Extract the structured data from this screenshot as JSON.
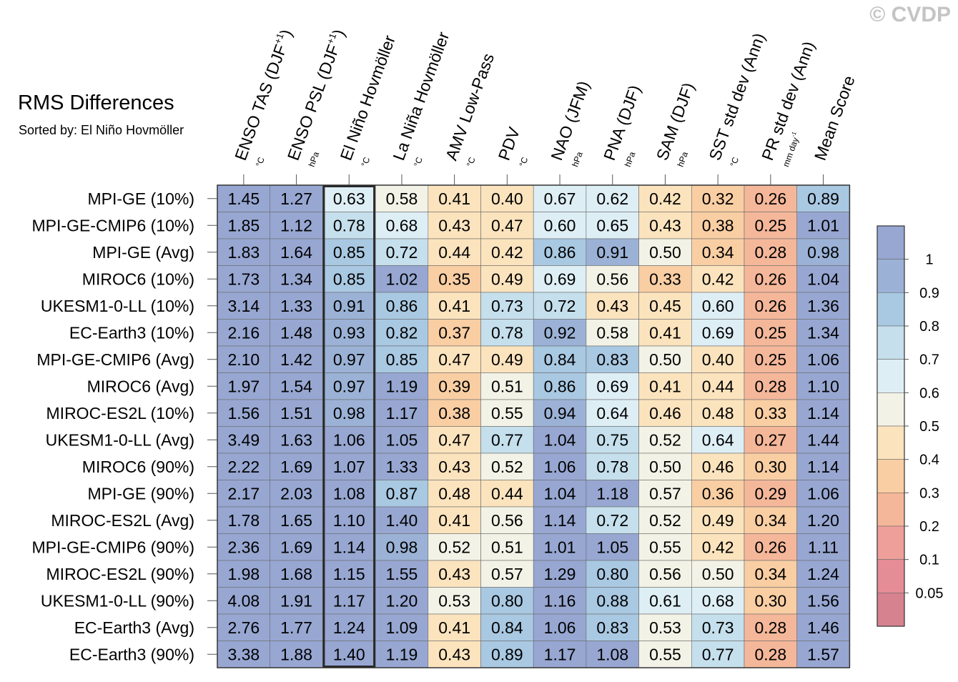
{
  "watermark": "© CVDP",
  "chart_data": {
    "type": "heatmap",
    "title": "RMS Differences",
    "subtitle": "Sorted by: El Niño Hovmöller",
    "highlight_column": 2,
    "columns": [
      {
        "label": "ENSO TAS (DJF",
        "sup": "+1",
        "tail": ")",
        "unit": "°C"
      },
      {
        "label": "ENSO PSL (DJF",
        "sup": "+1",
        "tail": ")",
        "unit": "hPa"
      },
      {
        "label": "El Niño Hovmöller",
        "sup": "",
        "tail": "",
        "unit": "°C"
      },
      {
        "label": "La Niña Hovmöller",
        "sup": "",
        "tail": "",
        "unit": "°C"
      },
      {
        "label": "AMV Low-Pass",
        "sup": "",
        "tail": "",
        "unit": "°C"
      },
      {
        "label": "PDV",
        "sup": "",
        "tail": "",
        "unit": "°C"
      },
      {
        "label": "NAO (JFM)",
        "sup": "",
        "tail": "",
        "unit": "hPa"
      },
      {
        "label": "PNA (DJF)",
        "sup": "",
        "tail": "",
        "unit": "hPa"
      },
      {
        "label": "SAM (DJF)",
        "sup": "",
        "tail": "",
        "unit": "hPa"
      },
      {
        "label": "SST std dev (Ann)",
        "sup": "",
        "tail": "",
        "unit": "°C"
      },
      {
        "label": "PR std dev (Ann)",
        "sup": "",
        "tail": "",
        "unit": "mm day",
        "unit_sup": "-1"
      },
      {
        "label": "Mean Score",
        "sup": "",
        "tail": "",
        "unit": ""
      }
    ],
    "rows": [
      "MPI-GE (10%)",
      "MPI-GE-CMIP6 (10%)",
      "MPI-GE (Avg)",
      "MIROC6 (10%)",
      "UKESM1-0-LL (10%)",
      "EC-Earth3 (10%)",
      "MPI-GE-CMIP6 (Avg)",
      "MIROC6 (Avg)",
      "MIROC-ES2L (10%)",
      "UKESM1-0-LL (Avg)",
      "MIROC6 (90%)",
      "MPI-GE (90%)",
      "MIROC-ES2L (Avg)",
      "MPI-GE-CMIP6 (90%)",
      "MIROC-ES2L (90%)",
      "UKESM1-0-LL (90%)",
      "EC-Earth3 (Avg)",
      "EC-Earth3 (90%)"
    ],
    "values": [
      [
        "1.45",
        "1.27",
        "0.63",
        "0.58",
        "0.41",
        "0.40",
        "0.67",
        "0.62",
        "0.42",
        "0.32",
        "0.26",
        "0.89"
      ],
      [
        "1.85",
        "1.12",
        "0.78",
        "0.68",
        "0.43",
        "0.47",
        "0.60",
        "0.65",
        "0.43",
        "0.38",
        "0.25",
        "1.01"
      ],
      [
        "1.83",
        "1.64",
        "0.85",
        "0.72",
        "0.44",
        "0.42",
        "0.86",
        "0.91",
        "0.50",
        "0.34",
        "0.28",
        "0.98"
      ],
      [
        "1.73",
        "1.34",
        "0.85",
        "1.02",
        "0.35",
        "0.49",
        "0.69",
        "0.56",
        "0.33",
        "0.42",
        "0.26",
        "1.04"
      ],
      [
        "3.14",
        "1.33",
        "0.91",
        "0.86",
        "0.41",
        "0.73",
        "0.72",
        "0.43",
        "0.45",
        "0.60",
        "0.26",
        "1.36"
      ],
      [
        "2.16",
        "1.48",
        "0.93",
        "0.82",
        "0.37",
        "0.78",
        "0.92",
        "0.58",
        "0.41",
        "0.69",
        "0.25",
        "1.34"
      ],
      [
        "2.10",
        "1.42",
        "0.97",
        "0.85",
        "0.47",
        "0.49",
        "0.84",
        "0.83",
        "0.50",
        "0.40",
        "0.25",
        "1.06"
      ],
      [
        "1.97",
        "1.54",
        "0.97",
        "1.19",
        "0.39",
        "0.51",
        "0.86",
        "0.69",
        "0.41",
        "0.44",
        "0.28",
        "1.10"
      ],
      [
        "1.56",
        "1.51",
        "0.98",
        "1.17",
        "0.38",
        "0.55",
        "0.94",
        "0.64",
        "0.46",
        "0.48",
        "0.33",
        "1.14"
      ],
      [
        "3.49",
        "1.63",
        "1.06",
        "1.05",
        "0.47",
        "0.77",
        "1.04",
        "0.75",
        "0.52",
        "0.64",
        "0.27",
        "1.44"
      ],
      [
        "2.22",
        "1.69",
        "1.07",
        "1.33",
        "0.43",
        "0.52",
        "1.06",
        "0.78",
        "0.50",
        "0.46",
        "0.30",
        "1.14"
      ],
      [
        "2.17",
        "2.03",
        "1.08",
        "0.87",
        "0.48",
        "0.44",
        "1.04",
        "1.18",
        "0.57",
        "0.36",
        "0.29",
        "1.06"
      ],
      [
        "1.78",
        "1.65",
        "1.10",
        "1.40",
        "0.41",
        "0.56",
        "1.14",
        "0.72",
        "0.52",
        "0.49",
        "0.34",
        "1.20"
      ],
      [
        "2.36",
        "1.69",
        "1.14",
        "0.98",
        "0.52",
        "0.51",
        "1.01",
        "1.05",
        "0.55",
        "0.42",
        "0.26",
        "1.11"
      ],
      [
        "1.98",
        "1.68",
        "1.15",
        "1.55",
        "0.43",
        "0.57",
        "1.29",
        "0.80",
        "0.56",
        "0.50",
        "0.34",
        "1.24"
      ],
      [
        "4.08",
        "1.91",
        "1.17",
        "1.20",
        "0.53",
        "0.80",
        "1.16",
        "0.88",
        "0.61",
        "0.68",
        "0.30",
        "1.56"
      ],
      [
        "2.76",
        "1.77",
        "1.24",
        "1.09",
        "0.41",
        "0.84",
        "1.06",
        "0.83",
        "0.53",
        "0.73",
        "0.28",
        "1.46"
      ],
      [
        "3.38",
        "1.88",
        "1.40",
        "1.19",
        "0.43",
        "0.89",
        "1.17",
        "1.08",
        "0.55",
        "0.77",
        "0.28",
        "1.57"
      ]
    ],
    "colorbar": {
      "levels": [
        0.05,
        0.1,
        0.2,
        0.3,
        0.4,
        0.5,
        0.6,
        0.7,
        0.8,
        0.9,
        1
      ],
      "labels": [
        "0.05",
        "0.1",
        "0.2",
        "0.3",
        "0.4",
        "0.5",
        "0.6",
        "0.7",
        "0.8",
        "0.9",
        "1"
      ],
      "colors": [
        "#d6828f",
        "#e48d97",
        "#ef9f9a",
        "#f5b79a",
        "#f9cea3",
        "#fbe3bd",
        "#f2f2e6",
        "#deeef5",
        "#c5dfec",
        "#a9c8e2",
        "#9bb2d6",
        "#97a7d2"
      ]
    }
  }
}
